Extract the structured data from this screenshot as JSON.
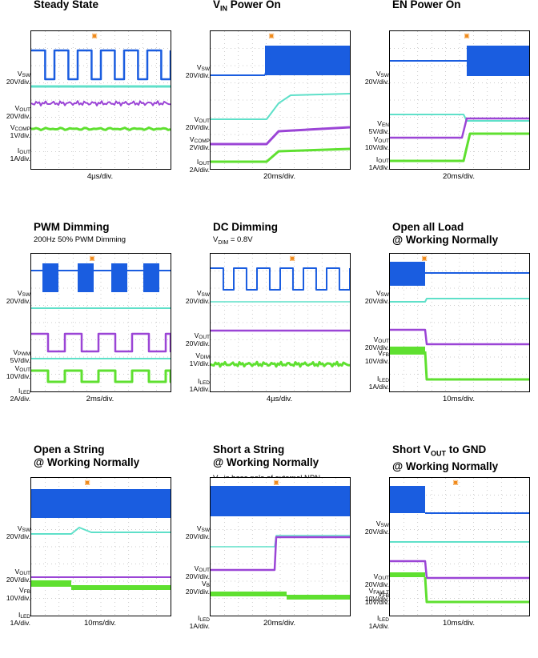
{
  "colors": {
    "blue": "#1a5de0",
    "cyan": "#5fe0c9",
    "purple": "#9b45d6",
    "green": "#5fe030",
    "grid": "#9a9a9a",
    "trigger": "#f08a1a"
  },
  "panels": [
    {
      "id": "steady",
      "title": "Steady State",
      "subtitle": "",
      "labels": [
        [
          "V",
          "SW",
          ""
        ],
        [
          "20V/div.",
          "",
          ""
        ],
        [
          "V",
          "OUT",
          ""
        ],
        [
          "20V/div.",
          "",
          ""
        ],
        [
          "V",
          "COMP",
          ""
        ],
        [
          "1V/div.",
          "",
          ""
        ],
        [
          "I",
          "OUT",
          ""
        ],
        [
          "1A/div.",
          "",
          ""
        ]
      ],
      "xdiv": "4µs/div."
    },
    {
      "id": "vin",
      "title": "V_IN Power On",
      "subtitle": "",
      "labels": [
        [
          "V",
          "SW",
          ""
        ],
        [
          "20V/div.",
          "",
          ""
        ],
        [
          "V",
          "OUT",
          ""
        ],
        [
          "20V/div.",
          "",
          ""
        ],
        [
          "V",
          "COMP",
          ""
        ],
        [
          "2V/div.",
          "",
          ""
        ],
        [
          "I",
          "OUT",
          ""
        ],
        [
          "2A/div.",
          "",
          ""
        ]
      ],
      "xdiv": "20ms/div."
    },
    {
      "id": "en",
      "title": "EN Power On",
      "subtitle": "",
      "labels": [
        [
          "V",
          "SW",
          ""
        ],
        [
          "20V/div.",
          "",
          ""
        ],
        [
          "V",
          "EN",
          ""
        ],
        [
          "5V/div.",
          "",
          ""
        ],
        [
          "V",
          "OUT",
          ""
        ],
        [
          "10V/div.",
          "",
          ""
        ],
        [
          "I",
          "OUT",
          ""
        ],
        [
          "1A/div.",
          "",
          ""
        ]
      ],
      "xdiv": "20ms/div."
    },
    {
      "id": "pwm",
      "title": "PWM Dimming",
      "subtitle": "200Hz 50% PWM Dimming",
      "labels": [
        [
          "V",
          "SW",
          ""
        ],
        [
          "20V/div.",
          "",
          ""
        ],
        [
          "V",
          "PWM",
          ""
        ],
        [
          "5V/div.",
          "",
          ""
        ],
        [
          "V",
          "OUT",
          ""
        ],
        [
          "10V/div.",
          "",
          ""
        ],
        [
          "I",
          "LED",
          ""
        ],
        [
          "2A/div.",
          "",
          ""
        ]
      ],
      "xdiv": "2ms/div."
    },
    {
      "id": "dc",
      "title": "DC Dimming",
      "subtitle": "V_DIM = 0.8V",
      "labels": [
        [
          "V",
          "SW",
          ""
        ],
        [
          "20V/div.",
          "",
          ""
        ],
        [
          "V",
          "OUT",
          ""
        ],
        [
          "20V/div.",
          "",
          ""
        ],
        [
          "V",
          "DIM",
          ""
        ],
        [
          "1V/div.",
          "",
          ""
        ],
        [
          "I",
          "LED",
          ""
        ],
        [
          "1A/div.",
          "",
          ""
        ]
      ],
      "xdiv": "4µs/div."
    },
    {
      "id": "openall",
      "title": "Open all Load\n@ Working Normally",
      "subtitle": "",
      "labels": [
        [
          "V",
          "SW",
          ""
        ],
        [
          "20V/div.",
          "",
          ""
        ],
        [
          "V",
          "OUT",
          ""
        ],
        [
          "20V/div.",
          "",
          ""
        ],
        [
          "V",
          "FB",
          ""
        ],
        [
          "10V/div.",
          "",
          ""
        ],
        [
          "I",
          "LED",
          ""
        ],
        [
          "1A/div.",
          "",
          ""
        ]
      ],
      "xdiv": "10ms/div."
    },
    {
      "id": "openstr",
      "title": "Open a String\n@ Working Normally",
      "subtitle": "",
      "labels": [
        [
          "V",
          "SW",
          ""
        ],
        [
          "20V/div.",
          "",
          ""
        ],
        [
          "V",
          "OUT",
          ""
        ],
        [
          "20V/div.",
          "",
          ""
        ],
        [
          "V",
          "FB",
          ""
        ],
        [
          "10V/div.",
          "",
          ""
        ],
        [
          "I",
          "LED",
          ""
        ],
        [
          "1A/div.",
          "",
          ""
        ]
      ],
      "xdiv": "10ms/div."
    },
    {
      "id": "shortstr",
      "title": "Short a String\n@ Working Normally",
      "subtitle": "V_B is base pole of external NPN\ntransistor in the short string",
      "labels": [
        [
          "V",
          "SW",
          ""
        ],
        [
          "20V/div.",
          "",
          ""
        ],
        [
          "V",
          "OUT",
          ""
        ],
        [
          "20V/div.",
          "",
          ""
        ],
        [
          "V",
          "B",
          ""
        ],
        [
          "20V/div.",
          "",
          ""
        ],
        [
          "I",
          "LED",
          ""
        ],
        [
          "1A/div.",
          "",
          ""
        ]
      ],
      "xdiv": "20ms/div."
    },
    {
      "id": "shortvout",
      "title": "Short V_OUT to GND\n@ Working Normally",
      "subtitle": "",
      "labels": [
        [
          "V",
          "SW",
          ""
        ],
        [
          "20V/div.",
          "",
          ""
        ],
        [
          "V",
          "OUT",
          ""
        ],
        [
          "20V/div.",
          "",
          ""
        ],
        [
          "V",
          "FAULT",
          ""
        ],
        [
          "10V/div.",
          "",
          ""
        ],
        [
          "V",
          "FB",
          ""
        ],
        [
          "10V/div.",
          "",
          ""
        ],
        [
          "I",
          "LED",
          ""
        ],
        [
          "1A/div.",
          "",
          ""
        ]
      ],
      "xdiv": "10ms/div."
    }
  ],
  "chart_data": {
    "type": "line",
    "panels": [
      {
        "title": "Steady State",
        "xdiv": "4µs/div.",
        "series": [
          {
            "name": "VSW",
            "scale": "20V/div."
          },
          {
            "name": "VOUT",
            "scale": "20V/div."
          },
          {
            "name": "VCOMP",
            "scale": "1V/div."
          },
          {
            "name": "IOUT",
            "scale": "1A/div."
          }
        ]
      },
      {
        "title": "VIN Power On",
        "xdiv": "20ms/div.",
        "series": [
          {
            "name": "VSW",
            "scale": "20V/div."
          },
          {
            "name": "VOUT",
            "scale": "20V/div."
          },
          {
            "name": "VCOMP",
            "scale": "2V/div."
          },
          {
            "name": "IOUT",
            "scale": "2A/div."
          }
        ]
      },
      {
        "title": "EN Power On",
        "xdiv": "20ms/div.",
        "series": [
          {
            "name": "VSW",
            "scale": "20V/div."
          },
          {
            "name": "VEN",
            "scale": "5V/div."
          },
          {
            "name": "VOUT",
            "scale": "10V/div."
          },
          {
            "name": "IOUT",
            "scale": "1A/div."
          }
        ]
      },
      {
        "title": "PWM Dimming",
        "subtitle": "200Hz 50% PWM Dimming",
        "xdiv": "2ms/div.",
        "series": [
          {
            "name": "VSW",
            "scale": "20V/div."
          },
          {
            "name": "VPWM",
            "scale": "5V/div."
          },
          {
            "name": "VOUT",
            "scale": "10V/div."
          },
          {
            "name": "ILED",
            "scale": "2A/div."
          }
        ]
      },
      {
        "title": "DC Dimming",
        "subtitle": "VDIM = 0.8V",
        "xdiv": "4µs/div.",
        "series": [
          {
            "name": "VSW",
            "scale": "20V/div."
          },
          {
            "name": "VOUT",
            "scale": "20V/div."
          },
          {
            "name": "VDIM",
            "scale": "1V/div."
          },
          {
            "name": "ILED",
            "scale": "1A/div."
          }
        ]
      },
      {
        "title": "Open all Load @ Working Normally",
        "xdiv": "10ms/div.",
        "series": [
          {
            "name": "VSW",
            "scale": "20V/div."
          },
          {
            "name": "VOUT",
            "scale": "20V/div."
          },
          {
            "name": "VFB",
            "scale": "10V/div."
          },
          {
            "name": "ILED",
            "scale": "1A/div."
          }
        ]
      },
      {
        "title": "Open a String @ Working Normally",
        "xdiv": "10ms/div.",
        "series": [
          {
            "name": "VSW",
            "scale": "20V/div."
          },
          {
            "name": "VOUT",
            "scale": "20V/div."
          },
          {
            "name": "VFB",
            "scale": "10V/div."
          },
          {
            "name": "ILED",
            "scale": "1A/div."
          }
        ]
      },
      {
        "title": "Short a String @ Working Normally",
        "xdiv": "20ms/div.",
        "series": [
          {
            "name": "VSW",
            "scale": "20V/div."
          },
          {
            "name": "VOUT",
            "scale": "20V/div."
          },
          {
            "name": "VB",
            "scale": "20V/div."
          },
          {
            "name": "ILED",
            "scale": "1A/div."
          }
        ]
      },
      {
        "title": "Short VOUT to GND @ Working Normally",
        "xdiv": "10ms/div.",
        "series": [
          {
            "name": "VSW",
            "scale": "20V/div."
          },
          {
            "name": "VOUT",
            "scale": "20V/div."
          },
          {
            "name": "VFAULT",
            "scale": "10V/div."
          },
          {
            "name": "VFB",
            "scale": "10V/div."
          },
          {
            "name": "ILED",
            "scale": "1A/div."
          }
        ]
      }
    ]
  }
}
